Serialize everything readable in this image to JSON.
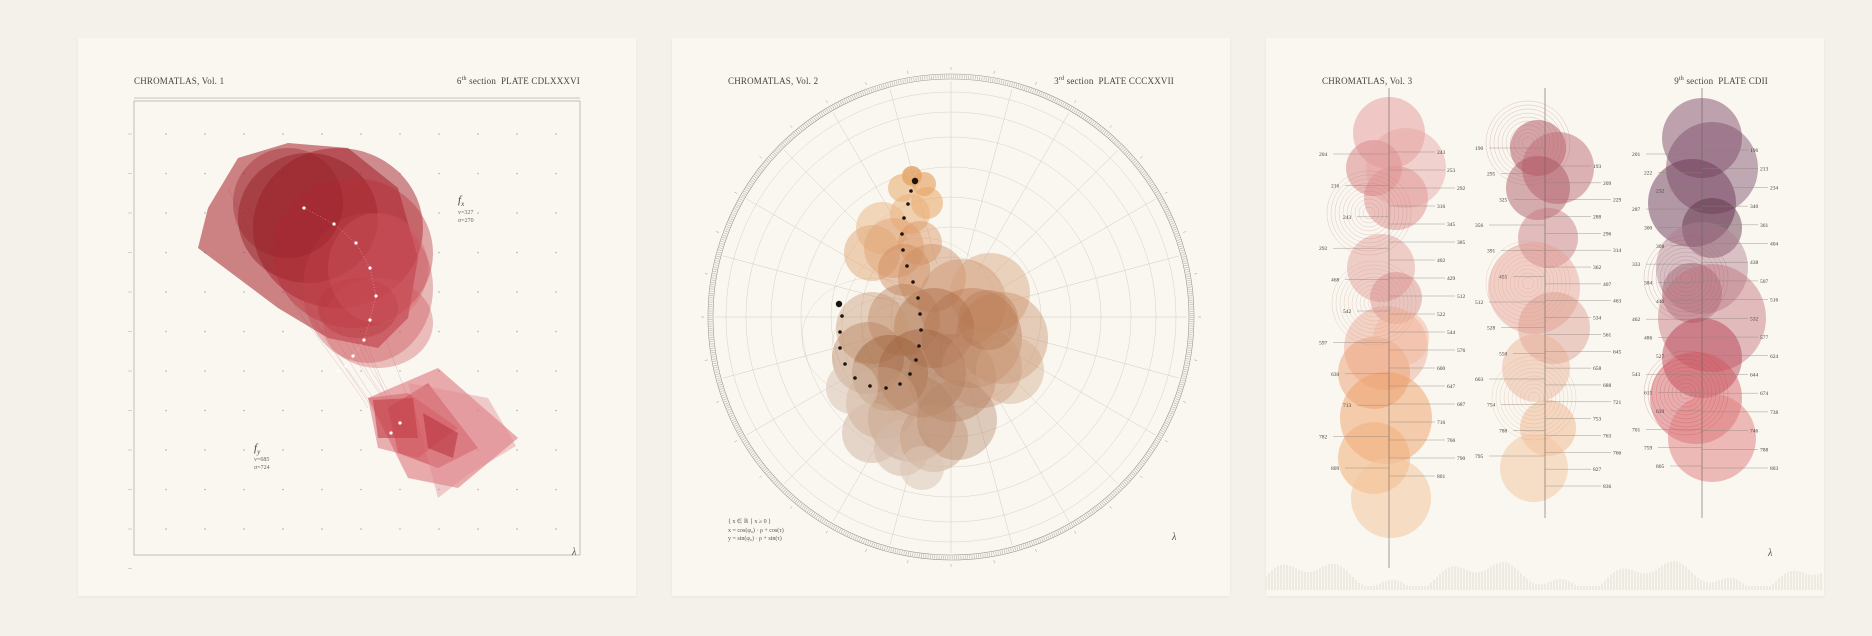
{
  "plates": [
    {
      "id": "plate-1",
      "volume": "CHROMATLAS, Vol. 1",
      "section_number": "6",
      "section_suffix": "th",
      "section_word": "section",
      "plate_label": "PLATE CDLXXXVI",
      "lambda": "λ",
      "fn_x": {
        "symbol": "f",
        "sub": "x",
        "values": [
          "v=327",
          "σ=270"
        ]
      },
      "fn_y": {
        "symbol": "f",
        "sub": "y",
        "values": [
          "v=685",
          "σ=724"
        ]
      }
    },
    {
      "id": "plate-2",
      "volume": "CHROMATLAS, Vol. 2",
      "section_number": "3",
      "section_suffix": "rd",
      "section_word": "section",
      "plate_label": "PLATE CCCXXVII",
      "lambda": "λ",
      "formula": [
        "{ x ∈ ℝ ∣ x ≥ 0 }",
        "x = cos(φ₀) · ρ + cos(τ)",
        "y = sin(φ₀) · ρ + sin(τ)"
      ]
    },
    {
      "id": "plate-3",
      "volume": "CHROMATLAS, Vol. 3",
      "section_number": "9",
      "section_suffix": "th",
      "section_word": "section",
      "plate_label": "PLATE CDII",
      "lambda": "λ",
      "column_labels": {
        "col1_left": [
          "204",
          "216",
          "243",
          "292",
          "468",
          "542",
          "597",
          "630",
          "713",
          "782",
          "809"
        ],
        "col1_right": [
          "243",
          "253",
          "292",
          "316",
          "345",
          "385",
          "402",
          "429",
          "512",
          "522",
          "544",
          "576",
          "600",
          "647",
          "687",
          "716",
          "766",
          "790",
          "801"
        ],
        "col2_left": [
          "190",
          "295",
          "325",
          "356",
          "391",
          "455",
          "512",
          "528",
          "550",
          "603",
          "754",
          "788",
          "795"
        ],
        "col2_right": [
          "193",
          "209",
          "229",
          "288",
          "296",
          "314",
          "362",
          "407",
          "463",
          "534",
          "561",
          "645",
          "658",
          "688",
          "721",
          "753",
          "763",
          "766",
          "827",
          "836"
        ],
        "col3_left": [
          "201",
          "222",
          "232",
          "287",
          "300",
          "308",
          "333",
          "384",
          "446",
          "462",
          "486",
          "527",
          "543",
          "615",
          "639",
          "701",
          "759",
          "805"
        ],
        "col3_right": [
          "196",
          "213",
          "234",
          "340",
          "361",
          "404",
          "438",
          "507",
          "516",
          "532",
          "577",
          "624",
          "644",
          "674",
          "738",
          "746",
          "788",
          "803"
        ]
      }
    }
  ],
  "colors": {
    "paper": "#f9f7f0",
    "background": "#f3f1ea",
    "crimson": "#b3262d",
    "rose": "#d9616a",
    "amber": "#e09a55",
    "umber": "#9c5e36",
    "plum": "#5a2c45",
    "peach": "#efb78f"
  }
}
